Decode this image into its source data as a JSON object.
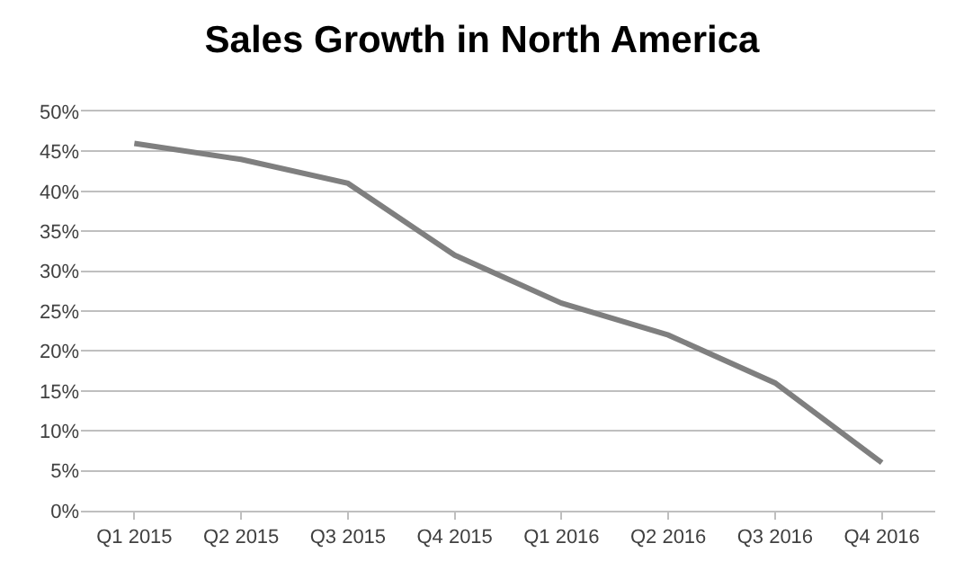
{
  "chart_data": {
    "type": "line",
    "title": "Sales Growth in North America",
    "categories": [
      "Q1 2015",
      "Q2 2015",
      "Q3 2015",
      "Q4 2015",
      "Q1 2016",
      "Q2 2016",
      "Q3 2016",
      "Q4 2016"
    ],
    "series": [
      {
        "color": "#7f7f7f",
        "values": [
          46,
          44,
          41,
          32,
          26,
          22,
          16,
          6
        ]
      }
    ],
    "ylim": [
      0,
      50
    ],
    "yticks": [
      {
        "value": 0,
        "label": "0%"
      },
      {
        "value": 5,
        "label": "5%"
      },
      {
        "value": 10,
        "label": "10%"
      },
      {
        "value": 15,
        "label": "15%"
      },
      {
        "value": 20,
        "label": "20%"
      },
      {
        "value": 25,
        "label": "25%"
      },
      {
        "value": 30,
        "label": "30%"
      },
      {
        "value": 35,
        "label": "35%"
      },
      {
        "value": 40,
        "label": "40%"
      },
      {
        "value": 45,
        "label": "45%"
      },
      {
        "value": 50,
        "label": "50%"
      }
    ],
    "grid": "y",
    "marker": "none",
    "line_style": "solid"
  }
}
